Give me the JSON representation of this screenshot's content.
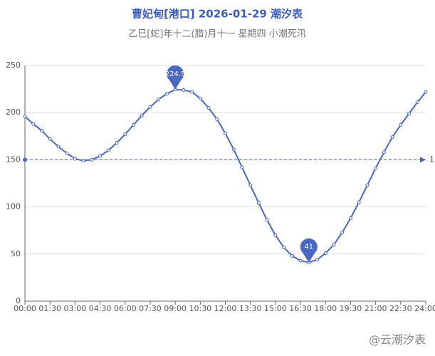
{
  "chart_data": {
    "type": "line",
    "title": "曹妃甸[港口] 2026-01-29 潮汐表",
    "subtitle": "乙巳[蛇]年十二(腊)月十一 星期四 小潮死汛",
    "x": [
      0,
      0.5,
      1,
      1.5,
      2,
      2.5,
      3,
      3.5,
      4,
      4.5,
      5,
      5.5,
      6,
      6.5,
      7,
      7.5,
      8,
      8.5,
      9,
      9.5,
      10,
      10.5,
      11,
      11.5,
      12,
      12.5,
      13,
      13.5,
      14,
      14.5,
      15,
      15.5,
      16,
      16.5,
      17,
      17.5,
      18,
      18.5,
      19,
      19.5,
      20,
      20.5,
      21,
      21.5,
      22,
      22.5,
      23,
      23.5,
      24
    ],
    "values": [
      196,
      188,
      181,
      172,
      164,
      157,
      151,
      149,
      150,
      154,
      160,
      168,
      177,
      187,
      197,
      206,
      214,
      220,
      224.5,
      224,
      222,
      215,
      205,
      193,
      178,
      161,
      142,
      123,
      104,
      86,
      70,
      57,
      48,
      43,
      41,
      44,
      51,
      60,
      73,
      88,
      105,
      123,
      141,
      158,
      174,
      187,
      199,
      211,
      222
    ],
    "color": "#4a67c2",
    "xlim": [
      0,
      24
    ],
    "xticks": [
      {
        "value": 0,
        "label": "00:00"
      },
      {
        "value": 1.5,
        "label": "01:30"
      },
      {
        "value": 3,
        "label": "03:00"
      },
      {
        "value": 4.5,
        "label": "04:30"
      },
      {
        "value": 6,
        "label": "06:00"
      },
      {
        "value": 7.5,
        "label": "07:30"
      },
      {
        "value": 9,
        "label": "09:00"
      },
      {
        "value": 10.5,
        "label": "10:30"
      },
      {
        "value": 12,
        "label": "12:00"
      },
      {
        "value": 13.5,
        "label": "13:30"
      },
      {
        "value": 15,
        "label": "15:00"
      },
      {
        "value": 16.5,
        "label": "16:30"
      },
      {
        "value": 18,
        "label": "18:00"
      },
      {
        "value": 19.5,
        "label": "19:30"
      },
      {
        "value": 21,
        "label": "21:00"
      },
      {
        "value": 22.5,
        "label": "22:30"
      },
      {
        "value": 24,
        "label": "24:00"
      }
    ],
    "ylim": [
      0,
      250
    ],
    "yticks": [
      0,
      50,
      100,
      150,
      200,
      250
    ],
    "grid": true,
    "mark_points": [
      {
        "x": 9,
        "value": 224.5
      },
      {
        "x": 17,
        "value": 41
      }
    ],
    "mark_line": {
      "value": 150
    },
    "watermark": "@云潮汐表"
  }
}
